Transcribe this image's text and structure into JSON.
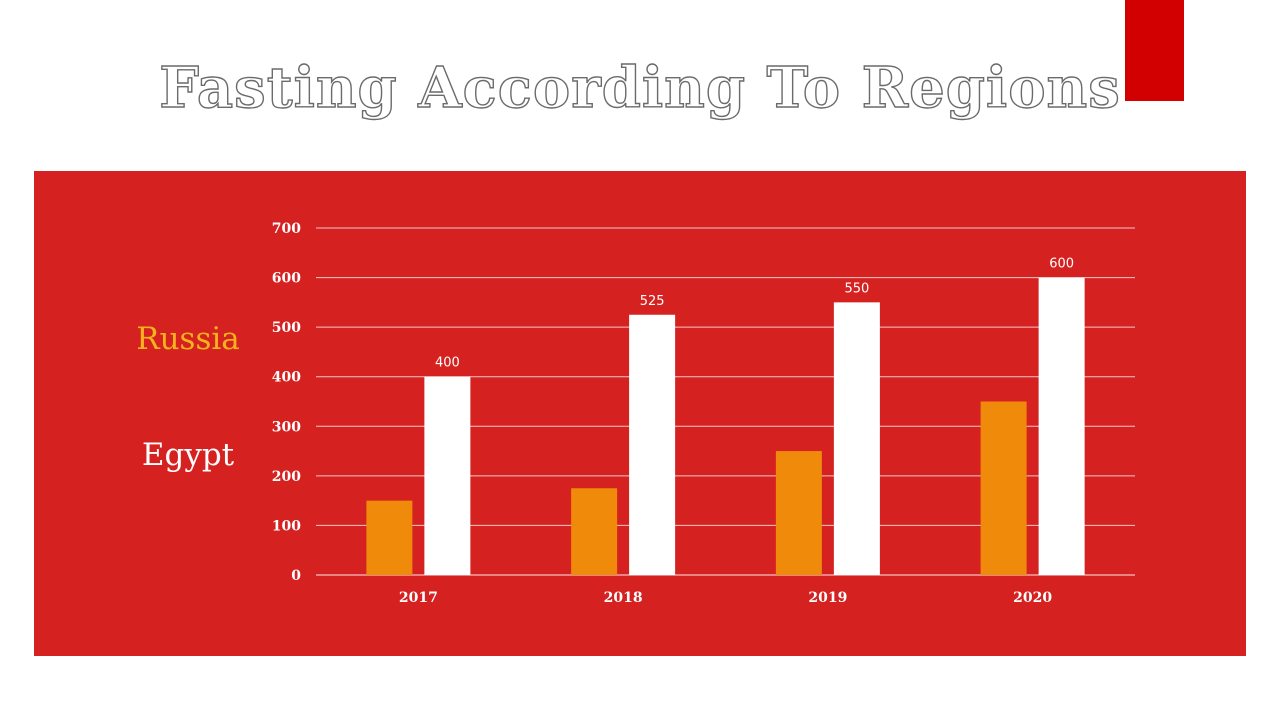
{
  "slide": {
    "title": "Fasting According To Regions"
  },
  "colors": {
    "accent": "#d20000",
    "panel": "#d52120",
    "series_russia": "#f08a0a",
    "series_egypt": "#ffffff",
    "russia_label": "#f5b21c",
    "egypt_label": "#ffffff"
  },
  "legend": {
    "russia": "Russia",
    "egypt": "Egypt"
  },
  "chart_data": {
    "type": "bar",
    "categories": [
      "2017",
      "2018",
      "2019",
      "2020"
    ],
    "series": [
      {
        "name": "Russia",
        "values": [
          150,
          175,
          250,
          350
        ],
        "color": "#f08a0a",
        "show_labels": false
      },
      {
        "name": "Egypt",
        "values": [
          400,
          525,
          550,
          600
        ],
        "color": "#ffffff",
        "show_labels": true
      }
    ],
    "ylim": [
      0,
      700
    ],
    "yticks": [
      0,
      100,
      200,
      300,
      400,
      500,
      600,
      700
    ],
    "grid": true,
    "legend_position": "left"
  }
}
